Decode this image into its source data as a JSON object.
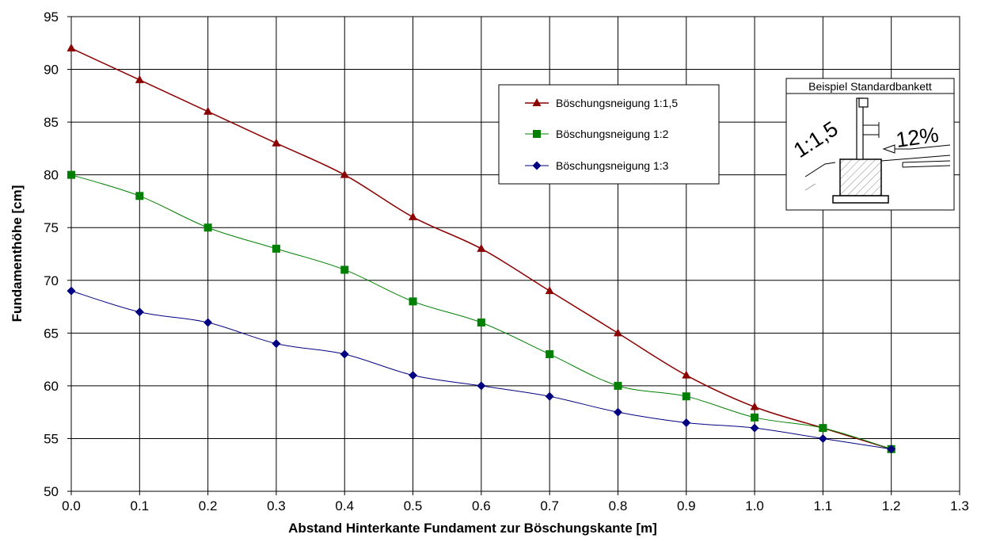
{
  "chart_data": {
    "type": "line",
    "title": "",
    "xlabel": "Abstand Hinterkante Fundament zur Böschungskante [m]",
    "ylabel": "Fundamenthöhe [cm]",
    "xlim": [
      0,
      1.3
    ],
    "ylim": [
      50,
      95
    ],
    "xticks": [
      "0.0",
      "0.1",
      "0.2",
      "0.3",
      "0.4",
      "0.5",
      "0.6",
      "0.7",
      "0.8",
      "0.9",
      "1.0",
      "1.1",
      "1.2",
      "1.3"
    ],
    "yticks": [
      "50",
      "55",
      "60",
      "65",
      "70",
      "75",
      "80",
      "85",
      "90",
      "95"
    ],
    "grid": true,
    "legend_position": "top-center-right",
    "series": [
      {
        "name": "Böschungsneigung 1:1,5",
        "color": "#8b0000",
        "marker": "triangle",
        "x": [
          0.0,
          0.1,
          0.2,
          0.3,
          0.4,
          0.5,
          0.6,
          0.7,
          0.8,
          0.9,
          1.0,
          1.1,
          1.2
        ],
        "y": [
          92,
          89,
          86,
          83,
          80,
          76,
          73,
          69,
          65,
          61,
          58,
          56,
          54
        ]
      },
      {
        "name": "Böschungsneigung 1:2",
        "color": "#008000",
        "marker": "square",
        "x": [
          0.0,
          0.1,
          0.2,
          0.3,
          0.4,
          0.5,
          0.6,
          0.7,
          0.8,
          0.9,
          1.0,
          1.1,
          1.2
        ],
        "y": [
          80,
          78,
          75,
          73,
          71,
          68,
          66,
          63,
          60,
          59,
          57,
          56,
          54
        ]
      },
      {
        "name": "Böschungsneigung 1:3",
        "color": "#000080",
        "marker": "diamond",
        "x": [
          0.0,
          0.1,
          0.2,
          0.3,
          0.4,
          0.5,
          0.6,
          0.7,
          0.8,
          0.9,
          1.0,
          1.1,
          1.2
        ],
        "y": [
          69,
          67,
          66,
          64,
          63,
          61,
          60,
          59,
          57.5,
          56.5,
          56,
          55,
          54
        ]
      }
    ],
    "inset": {
      "title": "Beispiel Standardbankett",
      "slope_label": "1:1,5",
      "grade_label": "12%"
    }
  }
}
